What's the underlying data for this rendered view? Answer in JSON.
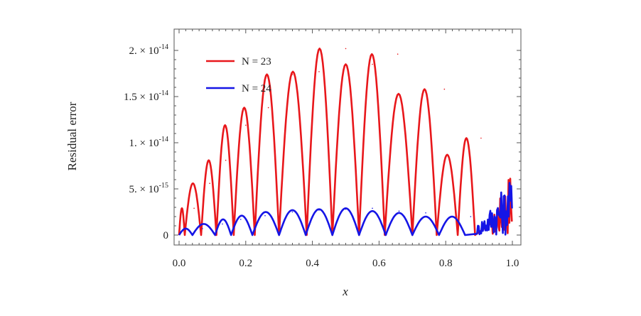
{
  "chart_data": {
    "type": "line",
    "title": "",
    "xlabel": "x",
    "ylabel": "Residual error",
    "xlim": [
      0.0,
      1.0
    ],
    "ylim": [
      0,
      2.05e-14
    ],
    "x_ticks": [
      0.0,
      0.2,
      0.4,
      0.6,
      0.8,
      1.0
    ],
    "x_tick_labels": [
      "0.0",
      "0.2",
      "0.4",
      "0.6",
      "0.8",
      "1.0"
    ],
    "y_ticks": [
      0,
      5e-15,
      1e-14,
      1.5e-14,
      2e-14
    ],
    "y_tick_labels": [
      {
        "mantissa": "0",
        "exponent": ""
      },
      {
        "mantissa": "5. × 10",
        "exponent": "-15"
      },
      {
        "mantissa": "1. × 10",
        "exponent": "-14"
      },
      {
        "mantissa": "1.5 × 10",
        "exponent": "-14"
      },
      {
        "mantissa": "2. × 10",
        "exponent": "-14"
      }
    ],
    "grid": false,
    "legend_position": "top-left",
    "series": [
      {
        "name": "N = 23",
        "color": "#e8171b",
        "zeros_x": [
          0.0,
          0.017,
          0.066,
          0.112,
          0.164,
          0.227,
          0.3,
          0.383,
          0.46,
          0.54,
          0.617,
          0.7,
          0.773,
          0.836,
          0.888,
          0.934
        ],
        "peaks_x": [
          0.045,
          0.092,
          0.14,
          0.2,
          0.268,
          0.34,
          0.42,
          0.5,
          0.58,
          0.656,
          0.73,
          0.796,
          0.853,
          0.906
        ],
        "peaks_y": [
          2.9e-15,
          5.6e-15,
          8.1e-15,
          1.19e-14,
          1.38e-14,
          1.74e-14,
          1.77e-14,
          2.02e-14,
          1.85e-14,
          1.96e-14,
          1.53e-14,
          1.58e-14,
          8.7e-15,
          1.05e-14
        ]
      },
      {
        "name": "N = 24",
        "color": "#1515e6",
        "zeros_x": [
          0.0,
          0.04,
          0.108,
          0.156,
          0.22,
          0.3,
          0.38,
          0.46,
          0.54,
          0.62,
          0.7,
          0.78,
          0.858,
          0.892
        ],
        "peaks_x": [
          0.07,
          0.13,
          0.185,
          0.258,
          0.34,
          0.42,
          0.5,
          0.58,
          0.66,
          0.74,
          0.82,
          0.875
        ],
        "peaks_y": [
          7e-16,
          1.2e-15,
          1.7e-15,
          2.1e-15,
          2.5e-15,
          2.7e-15,
          2.8e-15,
          2.9e-15,
          2.6e-15,
          2.4e-15,
          2e-15,
          2e-15
        ]
      }
    ]
  }
}
